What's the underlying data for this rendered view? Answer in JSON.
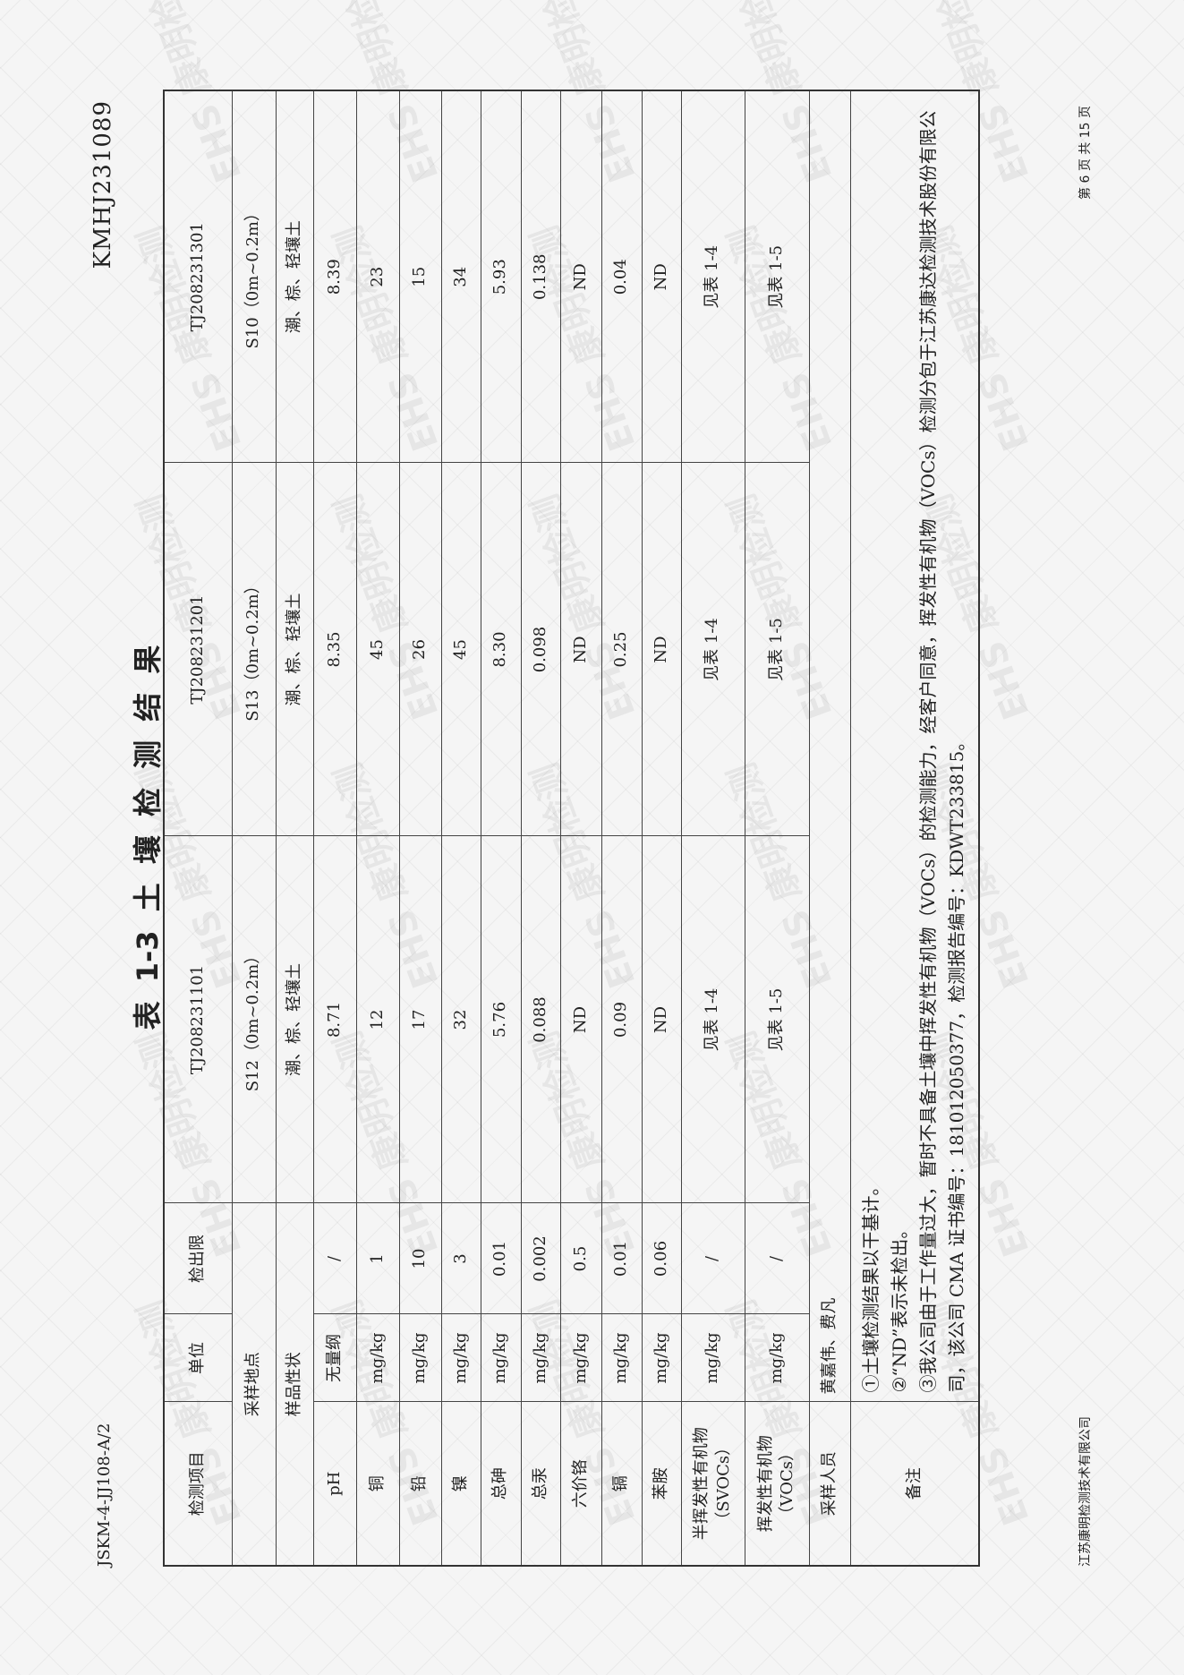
{
  "header": {
    "doc_code": "JSKM-4-JJ108-A/2",
    "report_no": "KMHJ231089"
  },
  "title": "表 1-3 土 壤 检 测 结 果",
  "watermark": "EHS 康明检测",
  "table": {
    "col_headers": {
      "item": "检测项目",
      "unit": "单位",
      "limit": "检出限"
    },
    "samples": [
      {
        "id": "TJ208231101",
        "location": "S12（0m~0.2m）",
        "property": "潮、棕、轻壤土"
      },
      {
        "id": "TJ208231201",
        "location": "S13（0m~0.2m）",
        "property": "潮、棕、轻壤土"
      },
      {
        "id": "TJ208231301",
        "location": "S10（0m~0.2m）",
        "property": "潮、棕、轻壤土"
      }
    ],
    "location_label": "采样地点",
    "property_label": "样品性状",
    "rows": [
      {
        "item": "pH",
        "unit": "无量纲",
        "limit": "/",
        "values": [
          "8.71",
          "8.35",
          "8.39"
        ]
      },
      {
        "item": "铜",
        "unit": "mg/kg",
        "limit": "1",
        "values": [
          "12",
          "45",
          "23"
        ]
      },
      {
        "item": "铅",
        "unit": "mg/kg",
        "limit": "10",
        "values": [
          "17",
          "26",
          "15"
        ]
      },
      {
        "item": "镍",
        "unit": "mg/kg",
        "limit": "3",
        "values": [
          "32",
          "45",
          "34"
        ]
      },
      {
        "item": "总砷",
        "unit": "mg/kg",
        "limit": "0.01",
        "values": [
          "5.76",
          "8.30",
          "5.93"
        ]
      },
      {
        "item": "总汞",
        "unit": "mg/kg",
        "limit": "0.002",
        "values": [
          "0.088",
          "0.098",
          "0.138"
        ]
      },
      {
        "item": "六价铬",
        "unit": "mg/kg",
        "limit": "0.5",
        "values": [
          "ND",
          "ND",
          "ND"
        ]
      },
      {
        "item": "镉",
        "unit": "mg/kg",
        "limit": "0.01",
        "values": [
          "0.09",
          "0.25",
          "0.04"
        ]
      },
      {
        "item": "苯胺",
        "unit": "mg/kg",
        "limit": "0.06",
        "values": [
          "ND",
          "ND",
          "ND"
        ]
      },
      {
        "item": "半挥发性有机物（SVOCs）",
        "unit": "mg/kg",
        "limit": "/",
        "values": [
          "见表 1-4",
          "见表 1-4",
          "见表 1-4"
        ]
      },
      {
        "item": "挥发性有机物（VOCs）",
        "unit": "mg/kg",
        "limit": "/",
        "values": [
          "见表 1-5",
          "见表 1-5",
          "见表 1-5"
        ]
      }
    ],
    "sampler_label": "采样人员",
    "sampler_value": "黄嘉伟、费凡",
    "remarks_label": "备注",
    "remarks": [
      "①土壤检测结果以干基计。",
      "②“ND”表示未检出。",
      "③我公司由于工作量过大，暂时不具备土壤中挥发性有机物（VOCs）的检测能力，经客户同意，挥发性有机物（VOCs）检测分包于江苏康达检测技术股份有限公司，该公司 CMA 证书编号：181012050377，检测报告编号：KDWT233815。"
    ]
  },
  "footer": {
    "company": "江苏康明检测技术有限公司",
    "page": "第 6 页 共 15 页"
  }
}
